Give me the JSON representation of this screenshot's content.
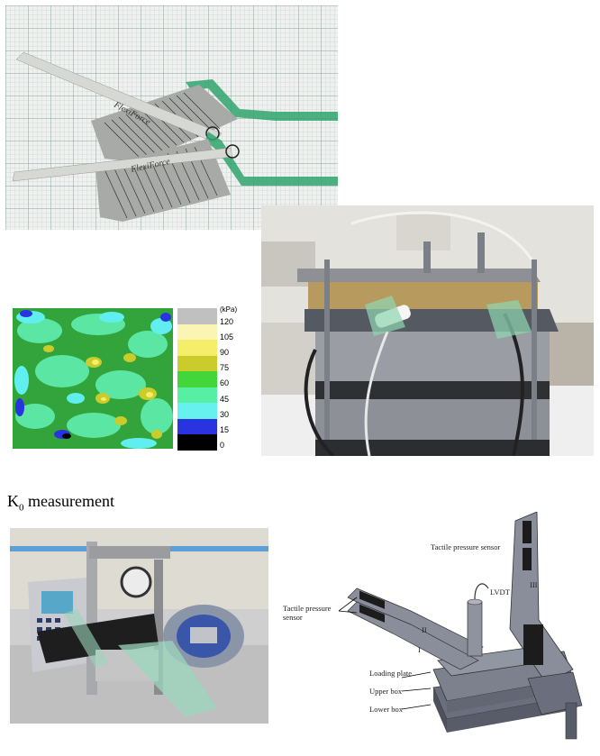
{
  "heading": {
    "main": "K",
    "sub": "0",
    "rest": " measurement"
  },
  "sensor_photo": {
    "brand_text": "FlexiForce"
  },
  "legend": {
    "unit": "(kPa)",
    "entries": [
      {
        "label": "120",
        "color": "#c0c0c0"
      },
      {
        "label": "105",
        "color": "#fbf5b4"
      },
      {
        "label": "90",
        "color": "#f5ee6a"
      },
      {
        "label": "75",
        "color": "#c9cc2a"
      },
      {
        "label": "60",
        "color": "#43d63b"
      },
      {
        "label": "45",
        "color": "#57efa4"
      },
      {
        "label": "30",
        "color": "#66f0ee"
      },
      {
        "label": "15",
        "color": "#2a33e0"
      },
      {
        "label": "0",
        "color": "#000000"
      }
    ]
  },
  "diagram": {
    "label_sensor_top": "Tactile pressure sensor",
    "label_sensor_left_1": "Tactile pressure",
    "label_sensor_left_2": "sensor",
    "label_lvdt": "LVDT",
    "label_loading_plate": "Loading plate",
    "label_upper_box": "Upper box",
    "label_lower_box": "Lower box",
    "roman_1": "I",
    "roman_2": "II",
    "roman_3": "III"
  }
}
